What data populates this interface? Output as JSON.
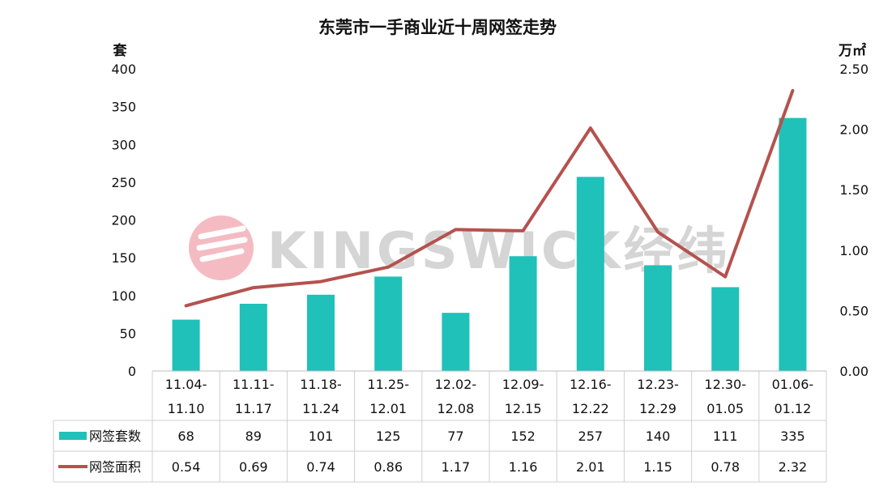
{
  "chart_data": {
    "type": "bar",
    "title": "东莞市一手商业近十周网签走势",
    "left_unit": "套",
    "right_unit": "万㎡",
    "categories": [
      [
        "11.04-",
        "11.10"
      ],
      [
        "11.11-",
        "11.17"
      ],
      [
        "11.18-",
        "11.24"
      ],
      [
        "11.25-",
        "12.01"
      ],
      [
        "12.02-",
        "12.08"
      ],
      [
        "12.09-",
        "12.15"
      ],
      [
        "12.16-",
        "12.22"
      ],
      [
        "12.23-",
        "12.29"
      ],
      [
        "12.30-",
        "01.05"
      ],
      [
        "01.06-",
        "01.12"
      ]
    ],
    "left_ticks": [
      "0",
      "50",
      "100",
      "150",
      "200",
      "250",
      "300",
      "350",
      "400"
    ],
    "right_ticks": [
      "0.00",
      "0.50",
      "1.00",
      "1.50",
      "2.00",
      "2.50"
    ],
    "ylim_left": [
      0,
      400
    ],
    "ylim_right": [
      0,
      2.5
    ],
    "series": [
      {
        "name": "网签套数",
        "kind": "bar",
        "axis": "left",
        "color": "#1fc1b9",
        "values": [
          68,
          89,
          101,
          125,
          77,
          152,
          257,
          140,
          111,
          335
        ],
        "labels": [
          "68",
          "89",
          "101",
          "125",
          "77",
          "152",
          "257",
          "140",
          "111",
          "335"
        ]
      },
      {
        "name": "网签面积",
        "kind": "line",
        "axis": "right",
        "color": "#b5524e",
        "values": [
          0.54,
          0.69,
          0.74,
          0.86,
          1.17,
          1.16,
          2.01,
          1.15,
          0.78,
          2.32
        ],
        "labels": [
          "0.54",
          "0.69",
          "0.74",
          "0.86",
          "1.17",
          "1.16",
          "2.01",
          "1.15",
          "0.78",
          "2.32"
        ]
      }
    ],
    "grid": false,
    "legend": "bottom-left data table"
  },
  "watermark": {
    "text": "KINGSWICK经纬",
    "color": "#c8c8c8",
    "logo_color": "#f2a5ae"
  }
}
